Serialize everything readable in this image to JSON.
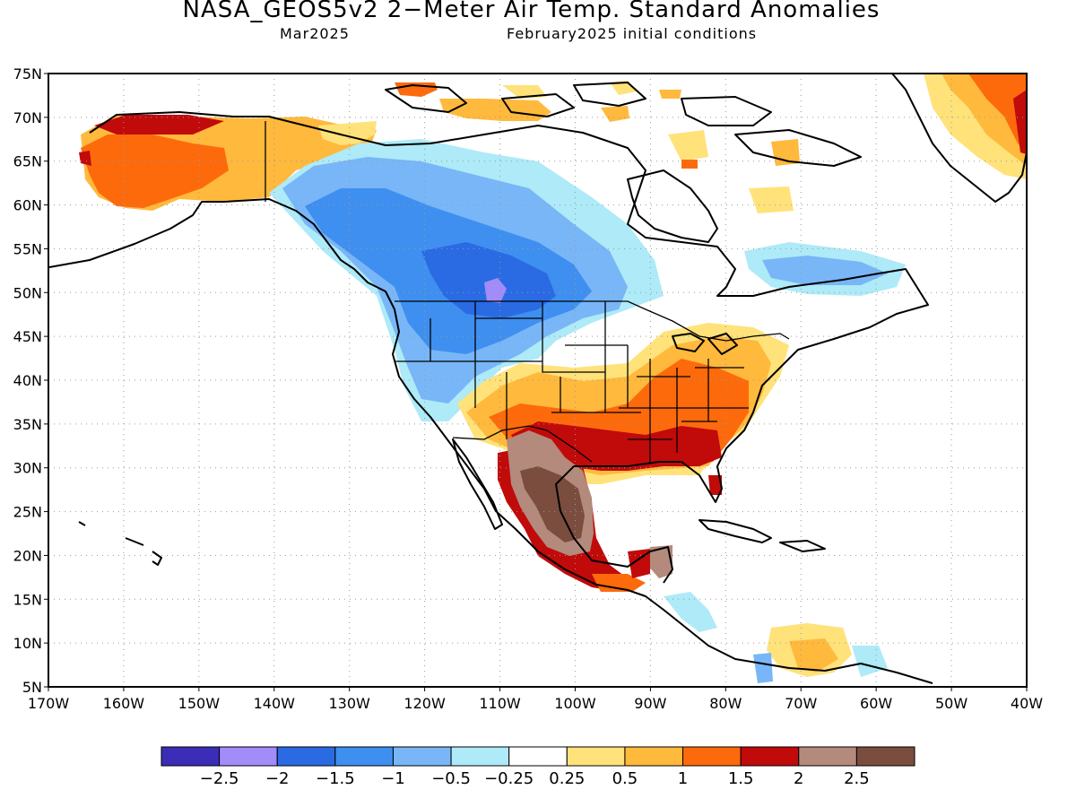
{
  "title": "NASA_GEOS5v2 2−Meter Air Temp. Standard Anomalies",
  "subtitle_left": "Mar2025",
  "subtitle_right": "February2025 initial conditions",
  "lat_labels": [
    "75N",
    "70N",
    "65N",
    "60N",
    "55N",
    "50N",
    "45N",
    "40N",
    "35N",
    "30N",
    "25N",
    "20N",
    "15N",
    "10N",
    "5N"
  ],
  "lon_labels": [
    "170W",
    "160W",
    "150W",
    "140W",
    "130W",
    "120W",
    "110W",
    "100W",
    "90W",
    "80W",
    "70W",
    "60W",
    "50W",
    "40W"
  ],
  "colorbar": {
    "colors": [
      "#3c2db8",
      "#a28cfa",
      "#2a6be3",
      "#3f8ff0",
      "#78b6f7",
      "#aeeaf7",
      "#ffffff",
      "#ffe27a",
      "#ffb93c",
      "#fd6a0c",
      "#c10a0a",
      "#b38a7c",
      "#7a4d3e"
    ],
    "labels": [
      "−2.5",
      "−2",
      "−1.5",
      "−1",
      "−0.5",
      "−0.25",
      "0.25",
      "0.5",
      "1",
      "1.5",
      "2",
      "2.5"
    ]
  },
  "legend_name": "color-scale"
}
